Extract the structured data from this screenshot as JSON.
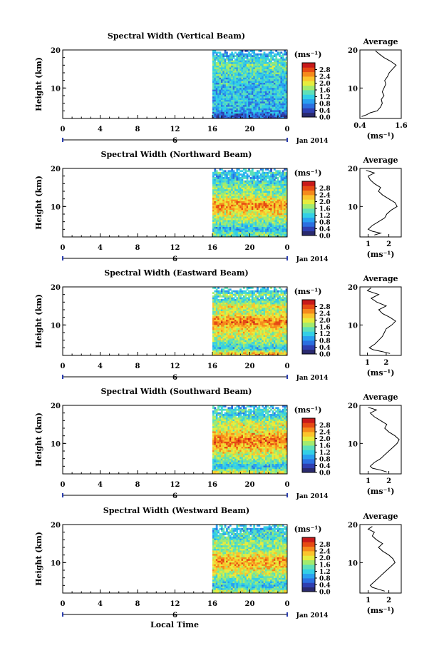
{
  "figure": {
    "xlabel": "Local Time",
    "date_label": "Jan 2014",
    "day_label": "6",
    "average_title": "Average",
    "unit_label": "(ms⁻¹)"
  },
  "colorscale": [
    "#2a2a6e",
    "#2f3fb0",
    "#2c6fe0",
    "#29a0f0",
    "#33cfe6",
    "#5fe0b8",
    "#a2eb6e",
    "#e6ec3e",
    "#fbc42c",
    "#f58a1c",
    "#e64a14",
    "#c8191a"
  ],
  "chart_data": [
    {
      "type": "heatmap",
      "title": "Spectral Width (Vertical Beam)",
      "ylabel": "Height (km)",
      "x_ticks": [
        "0",
        "4",
        "8",
        "12",
        "16",
        "20",
        "0"
      ],
      "y_ticks": [
        "20",
        "10"
      ],
      "xlim": [
        0,
        24
      ],
      "ylim": [
        2,
        20
      ],
      "data_start_hour": 16,
      "colorbar": {
        "label": "(ms⁻¹)",
        "ticks": [
          "2.8",
          "2.4",
          "2.0",
          "1.6",
          "1.2",
          "0.8",
          "0.4",
          "0.0"
        ],
        "range": [
          0,
          3.2
        ]
      },
      "profile": {
        "xlim": [
          0.4,
          1.6
        ],
        "x_ticks": [
          "0.4",
          "1.6"
        ],
        "y_ticks": [
          "20",
          "10"
        ],
        "xlabel": "(ms⁻¹)",
        "heights": [
          2.5,
          3,
          3.5,
          4,
          4.5,
          5,
          6,
          7,
          8,
          9,
          10,
          11,
          12,
          13,
          14,
          15,
          16,
          17,
          18,
          19,
          19.8
        ],
        "values": [
          0.45,
          0.6,
          0.7,
          0.9,
          0.95,
          1.0,
          1.05,
          1.02,
          1.1,
          1.05,
          1.1,
          1.15,
          1.12,
          1.2,
          1.25,
          1.35,
          1.45,
          1.3,
          1.1,
          0.95,
          0.85
        ]
      }
    },
    {
      "type": "heatmap",
      "title": "Spectral Width (Northward Beam)",
      "ylabel": "Height (km)",
      "x_ticks": [
        "0",
        "4",
        "8",
        "12",
        "16",
        "20",
        "0"
      ],
      "y_ticks": [
        "20",
        "10"
      ],
      "xlim": [
        0,
        24
      ],
      "ylim": [
        2,
        20
      ],
      "data_start_hour": 16,
      "colorbar": {
        "label": "(ms⁻¹)",
        "ticks": [
          "2.8",
          "2.4",
          "2.0",
          "1.6",
          "1.2",
          "0.8",
          "0.4",
          "0.0"
        ],
        "range": [
          0,
          3.2
        ]
      },
      "profile": {
        "xlim": [
          0.6,
          2.6
        ],
        "x_ticks": [
          "1",
          "2"
        ],
        "y_ticks": [
          "20",
          "10"
        ],
        "xlabel": "(ms⁻¹)",
        "heights": [
          2.5,
          3,
          3.5,
          4,
          5,
          6,
          7,
          8,
          9,
          10,
          11,
          12,
          13,
          14,
          15,
          16,
          17,
          18,
          18.8,
          19.5
        ],
        "values": [
          1.3,
          1.6,
          1.2,
          1.0,
          1.2,
          1.5,
          1.8,
          1.9,
          2.1,
          2.4,
          2.3,
          2.0,
          1.7,
          1.5,
          1.6,
          1.3,
          1.1,
          1.0,
          1.3,
          0.9
        ]
      }
    },
    {
      "type": "heatmap",
      "title": "Spectral Width (Eastward Beam)",
      "ylabel": "Height (km)",
      "x_ticks": [
        "0",
        "4",
        "8",
        "12",
        "16",
        "20",
        "0"
      ],
      "y_ticks": [
        "20",
        "10"
      ],
      "xlim": [
        0,
        24
      ],
      "ylim": [
        2,
        20
      ],
      "data_start_hour": 16,
      "colorbar": {
        "label": "(ms⁻¹)",
        "ticks": [
          "2.8",
          "2.4",
          "2.0",
          "1.6",
          "1.2",
          "0.8",
          "0.4",
          "0.0"
        ],
        "range": [
          0,
          3.2
        ]
      },
      "profile": {
        "xlim": [
          0.6,
          2.8
        ],
        "x_ticks": [
          "1",
          "2"
        ],
        "y_ticks": [
          "20",
          "10"
        ],
        "xlabel": "(ms⁻¹)",
        "heights": [
          2.5,
          3,
          3.5,
          4,
          5,
          6,
          7,
          8,
          9,
          10,
          11,
          12,
          13,
          14,
          15,
          16,
          17,
          18,
          19,
          19.8
        ],
        "values": [
          2.2,
          1.8,
          1.3,
          1.1,
          1.4,
          1.6,
          1.8,
          1.9,
          2.0,
          2.3,
          2.5,
          2.2,
          1.8,
          1.6,
          2.0,
          1.5,
          1.2,
          1.6,
          1.0,
          1.2
        ]
      }
    },
    {
      "type": "heatmap",
      "title": "Spectral Width (Southward Beam)",
      "ylabel": "Height (km)",
      "x_ticks": [
        "0",
        "4",
        "8",
        "12",
        "16",
        "20",
        "0"
      ],
      "y_ticks": [
        "20",
        "10"
      ],
      "xlim": [
        0,
        24
      ],
      "ylim": [
        2,
        20
      ],
      "data_start_hour": 16,
      "colorbar": {
        "label": "(ms⁻¹)",
        "ticks": [
          "2.8",
          "2.4",
          "2.0",
          "1.6",
          "1.2",
          "0.8",
          "0.4",
          "0.0"
        ],
        "range": [
          0,
          3.2
        ]
      },
      "profile": {
        "xlim": [
          0.6,
          2.6
        ],
        "x_ticks": [
          "1",
          "2"
        ],
        "y_ticks": [
          "20",
          "10"
        ],
        "xlabel": "(ms⁻¹)",
        "heights": [
          2.5,
          3,
          3.5,
          4,
          5,
          6,
          7,
          8,
          9,
          10,
          11,
          12,
          13,
          14,
          15,
          16,
          17,
          18,
          18.8,
          19.5
        ],
        "values": [
          1.9,
          1.6,
          1.2,
          1.1,
          1.3,
          1.6,
          1.8,
          2.0,
          2.2,
          2.4,
          2.5,
          2.3,
          2.0,
          1.8,
          1.9,
          1.6,
          1.3,
          1.1,
          1.4,
          1.0
        ]
      }
    },
    {
      "type": "heatmap",
      "title": "Spectral Width (Westward Beam)",
      "ylabel": "Height (km)",
      "x_ticks": [
        "0",
        "4",
        "8",
        "12",
        "16",
        "20",
        "0"
      ],
      "y_ticks": [
        "20",
        "10"
      ],
      "xlim": [
        0,
        24
      ],
      "ylim": [
        2,
        20
      ],
      "data_start_hour": 16,
      "colorbar": {
        "label": "(ms⁻¹)",
        "ticks": [
          "2.8",
          "2.4",
          "2.0",
          "1.6",
          "1.2",
          "0.8",
          "0.4",
          "0.0"
        ],
        "range": [
          0,
          3.2
        ]
      },
      "profile": {
        "xlim": [
          0.6,
          2.6
        ],
        "x_ticks": [
          "1",
          "2"
        ],
        "y_ticks": [
          "20",
          "10"
        ],
        "xlabel": "(ms⁻¹)",
        "heights": [
          2.5,
          3,
          3.5,
          4,
          5,
          6,
          7,
          8,
          9,
          10,
          11,
          12,
          13,
          14,
          15,
          16,
          17,
          18,
          18.8,
          19.5
        ],
        "values": [
          1.8,
          1.5,
          1.2,
          1.1,
          1.3,
          1.5,
          1.7,
          1.9,
          2.1,
          2.3,
          2.2,
          2.0,
          1.7,
          1.5,
          1.7,
          1.4,
          1.2,
          1.3,
          1.0,
          1.2
        ]
      }
    }
  ]
}
